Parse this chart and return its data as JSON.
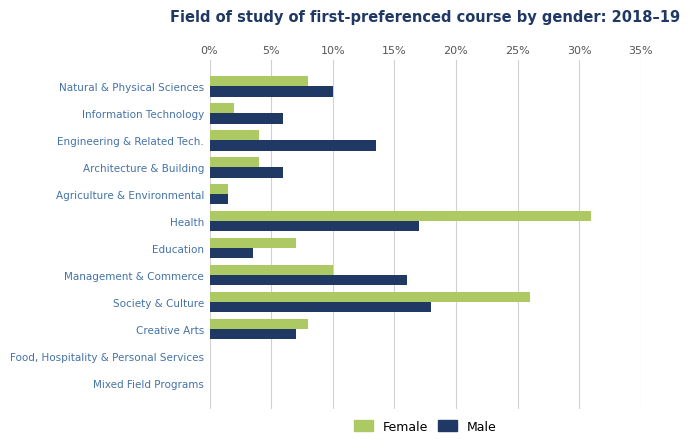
{
  "title": "Field of study of first-preferenced course by gender: 2018–19",
  "categories": [
    "Natural & Physical Sciences",
    "Information Technology",
    "Engineering & Related Tech.",
    "Architecture & Building",
    "Agriculture & Environmental",
    "Health",
    "Education",
    "Management & Commerce",
    "Society & Culture",
    "Creative Arts",
    "Food, Hospitality & Personal Services",
    "Mixed Field Programs"
  ],
  "female": [
    8.0,
    2.0,
    4.0,
    4.0,
    1.5,
    31.0,
    7.0,
    10.0,
    26.0,
    8.0,
    0.0,
    0.0
  ],
  "male": [
    10.0,
    6.0,
    13.5,
    6.0,
    1.5,
    17.0,
    3.5,
    16.0,
    18.0,
    7.0,
    0.0,
    0.0
  ],
  "female_color": "#adc964",
  "male_color": "#1f3864",
  "xlim": [
    0,
    35
  ],
  "xticks": [
    0,
    5,
    10,
    15,
    20,
    25,
    30,
    35
  ],
  "xticklabels": [
    "0%",
    "5%",
    "10%",
    "15%",
    "20%",
    "25%",
    "30%",
    "35%"
  ],
  "grid_color": "#d0d0d0",
  "label_color": "#4472a8",
  "title_color": "#1f3864",
  "legend_female": "Female",
  "legend_male": "Male",
  "bar_height": 0.38
}
